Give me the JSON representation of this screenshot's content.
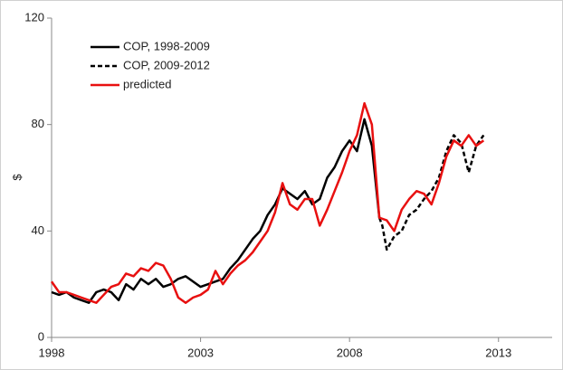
{
  "chart_data": {
    "type": "line",
    "ylabel": "$",
    "xlim": [
      1998,
      2014.8
    ],
    "xticks": [
      1998,
      2003,
      2008,
      2013
    ],
    "ylim": [
      0,
      120
    ],
    "yticks": [
      0,
      40,
      80,
      120
    ],
    "legend": "upper left",
    "series": [
      {
        "name": "COP, 1998-2009",
        "color": "#000000",
        "dash": false,
        "x": [
          1998,
          1998.25,
          1998.5,
          1998.75,
          1999,
          1999.25,
          1999.5,
          1999.75,
          2000,
          2000.25,
          2000.5,
          2000.75,
          2001,
          2001.25,
          2001.5,
          2001.75,
          2002,
          2002.25,
          2002.5,
          2002.75,
          2003,
          2003.25,
          2003.5,
          2003.75,
          2004,
          2004.25,
          2004.5,
          2004.75,
          2005,
          2005.25,
          2005.5,
          2005.75,
          2006,
          2006.25,
          2006.5,
          2006.75,
          2007,
          2007.25,
          2007.5,
          2007.75,
          2008,
          2008.25,
          2008.5,
          2008.75,
          2009
        ],
        "values": [
          17,
          16,
          17,
          15,
          14,
          13,
          17,
          18,
          17,
          14,
          20,
          18,
          22,
          20,
          22,
          19,
          20,
          22,
          23,
          21,
          19,
          20,
          21,
          22,
          26,
          29,
          33,
          37,
          40,
          46,
          50,
          56,
          54,
          52,
          55,
          50,
          52,
          60,
          64,
          70,
          74,
          70,
          82,
          72,
          45
        ]
      },
      {
        "name": "COP, 2009-2012",
        "color": "#000000",
        "dash": true,
        "x": [
          2009,
          2009.1,
          2009.25,
          2009.5,
          2009.75,
          2010,
          2010.25,
          2010.5,
          2010.75,
          2011,
          2011.25,
          2011.5,
          2011.75,
          2012,
          2012.25,
          2012.5
        ],
        "values": [
          45,
          42,
          33,
          38,
          40,
          46,
          48,
          52,
          55,
          60,
          70,
          76,
          73,
          62,
          72,
          76
        ]
      },
      {
        "name": "predicted",
        "color": "#e81010",
        "dash": false,
        "x": [
          1998,
          1998.25,
          1998.5,
          1998.75,
          1999,
          1999.25,
          1999.5,
          1999.75,
          2000,
          2000.25,
          2000.5,
          2000.75,
          2001,
          2001.25,
          2001.5,
          2001.75,
          2002,
          2002.25,
          2002.5,
          2002.75,
          2003,
          2003.25,
          2003.5,
          2003.75,
          2004,
          2004.25,
          2004.5,
          2004.75,
          2005,
          2005.25,
          2005.5,
          2005.75,
          2006,
          2006.25,
          2006.5,
          2006.75,
          2007,
          2007.25,
          2007.5,
          2007.75,
          2008,
          2008.25,
          2008.5,
          2008.75,
          2009,
          2009.25,
          2009.5,
          2009.75,
          2010,
          2010.25,
          2010.5,
          2010.75,
          2011,
          2011.25,
          2011.5,
          2011.75,
          2012,
          2012.25,
          2012.5
        ],
        "values": [
          21,
          17,
          17,
          16,
          15,
          14,
          13,
          16,
          19,
          20,
          24,
          23,
          26,
          25,
          28,
          27,
          22,
          15,
          13,
          15,
          16,
          18,
          25,
          20,
          24,
          27,
          29,
          32,
          36,
          40,
          47,
          58,
          50,
          48,
          52,
          52,
          42,
          48,
          55,
          62,
          70,
          76,
          88,
          80,
          45,
          44,
          40,
          48,
          52,
          55,
          54,
          50,
          58,
          68,
          74,
          72,
          76,
          72,
          74
        ]
      }
    ]
  }
}
